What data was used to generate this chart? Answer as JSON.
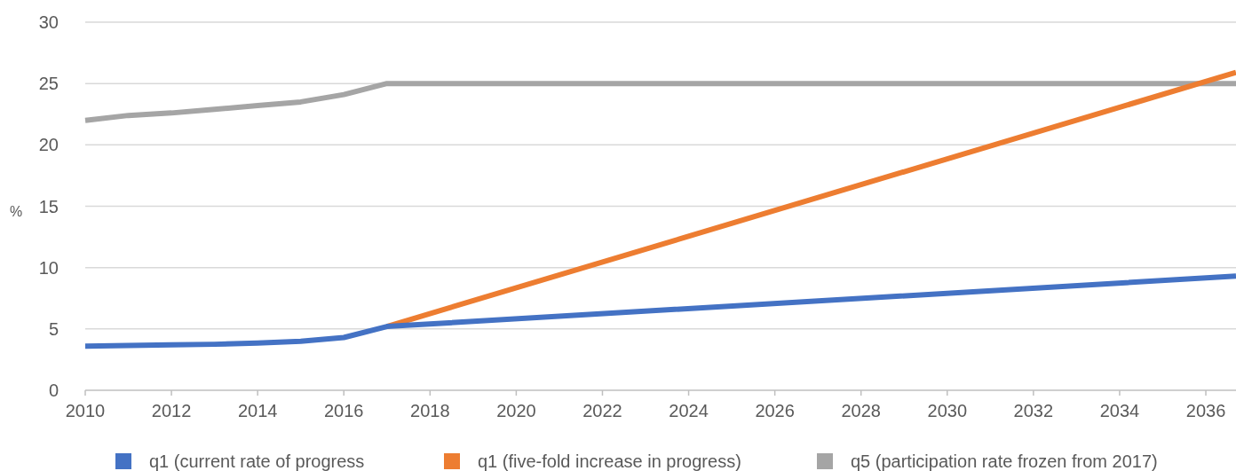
{
  "chart_data": {
    "type": "line",
    "ylabel": "%",
    "x": [
      2010,
      2011,
      2012,
      2013,
      2014,
      2015,
      2016,
      2017,
      2036.7
    ],
    "xlim": [
      2010,
      2036.7
    ],
    "xticks": [
      2010,
      2012,
      2014,
      2016,
      2018,
      2020,
      2022,
      2024,
      2026,
      2028,
      2030,
      2032,
      2034,
      2036
    ],
    "ylim": [
      0,
      30
    ],
    "yticks": [
      0,
      5,
      10,
      15,
      20,
      25,
      30
    ],
    "grid": "y",
    "legend": "bottom",
    "marker": "none",
    "line_style": "solid",
    "series": [
      {
        "name": "q1 (current rate of progress",
        "color": "#4472c4",
        "values": [
          3.6,
          3.65,
          3.7,
          3.75,
          3.85,
          4.0,
          4.3,
          5.2,
          9.3
        ]
      },
      {
        "name": "q1 (five-fold increase in progress)",
        "color": "#ed7d31",
        "values": [
          null,
          null,
          null,
          null,
          null,
          null,
          null,
          5.2,
          25.9
        ]
      },
      {
        "name": "q5 (participation rate frozen from 2017)",
        "color": "#a5a5a5",
        "values": [
          22.0,
          22.4,
          22.6,
          22.9,
          23.2,
          23.5,
          24.1,
          25.0,
          25.0
        ]
      }
    ]
  }
}
